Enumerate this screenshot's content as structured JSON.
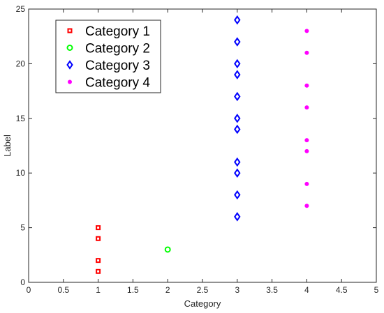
{
  "chart_data": {
    "type": "scatter",
    "title": "",
    "xlabel": "Category",
    "ylabel": "Label",
    "xlim": [
      0,
      5
    ],
    "ylim": [
      0,
      25
    ],
    "xticks": [
      0,
      0.5,
      1,
      1.5,
      2,
      2.5,
      3,
      3.5,
      4,
      4.5,
      5
    ],
    "yticks": [
      0,
      5,
      10,
      15,
      20,
      25
    ],
    "xtick_labels": [
      "0",
      "0.5",
      "1",
      "1.5",
      "2",
      "2.5",
      "3",
      "3.5",
      "4",
      "4.5",
      "5"
    ],
    "ytick_labels": [
      "0",
      "5",
      "10",
      "15",
      "20",
      "25"
    ],
    "grid": false,
    "legend_position": "top-left",
    "series": [
      {
        "name": "Category 1",
        "marker": "square",
        "color": "#ff0000",
        "points": [
          [
            1,
            1
          ],
          [
            1,
            2
          ],
          [
            1,
            4
          ],
          [
            1,
            5
          ]
        ]
      },
      {
        "name": "Category 2",
        "marker": "circle",
        "color": "#00ff00",
        "points": [
          [
            2,
            3
          ]
        ]
      },
      {
        "name": "Category 3",
        "marker": "diamond",
        "color": "#0000ff",
        "points": [
          [
            3,
            6
          ],
          [
            3,
            8
          ],
          [
            3,
            10
          ],
          [
            3,
            11
          ],
          [
            3,
            14
          ],
          [
            3,
            15
          ],
          [
            3,
            17
          ],
          [
            3,
            19
          ],
          [
            3,
            20
          ],
          [
            3,
            22
          ],
          [
            3,
            24
          ]
        ]
      },
      {
        "name": "Category 4",
        "marker": "dot",
        "color": "#ff00ff",
        "points": [
          [
            4,
            7
          ],
          [
            4,
            9
          ],
          [
            4,
            12
          ],
          [
            4,
            13
          ],
          [
            4,
            16
          ],
          [
            4,
            18
          ],
          [
            4,
            21
          ],
          [
            4,
            23
          ]
        ]
      }
    ]
  }
}
